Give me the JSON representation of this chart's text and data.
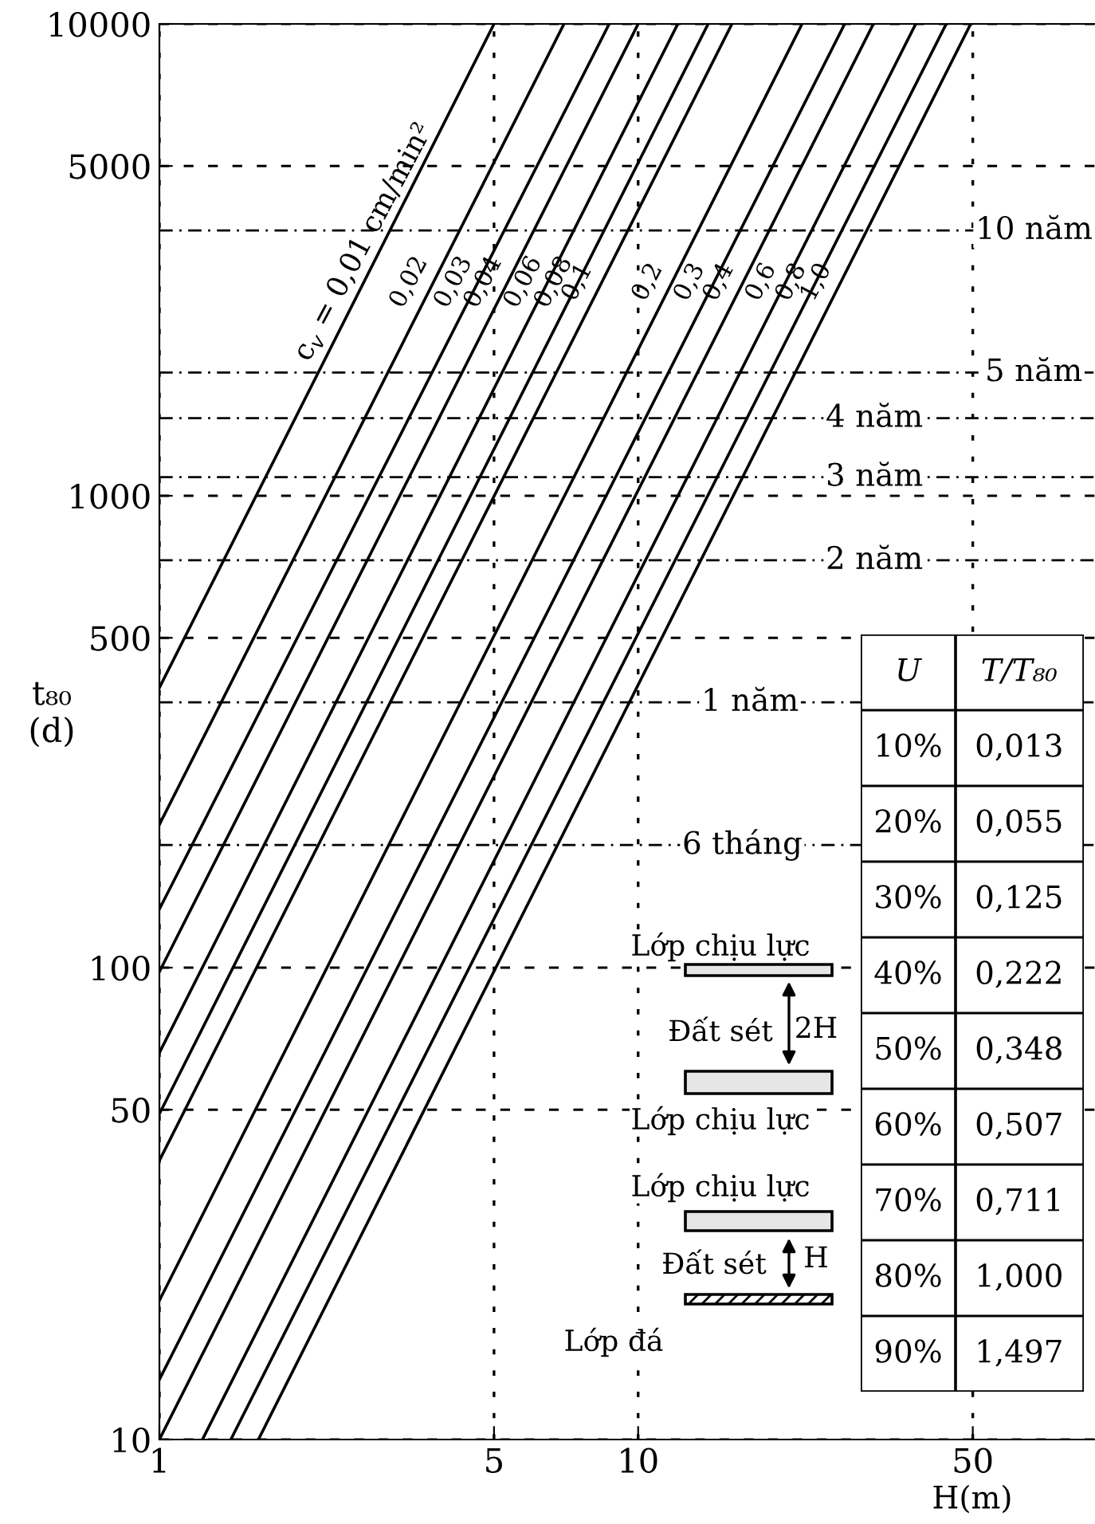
{
  "chart_data": [
    {
      "type": "line",
      "xlabel": "H(m)",
      "ylabel": "t₈₀\n(d)",
      "log": "xy",
      "grid": true,
      "line_style": "solid",
      "marker": "none",
      "xlim": [
        1,
        90
      ],
      "ylim": [
        10,
        10000
      ],
      "xticks": [
        1,
        5,
        10,
        50
      ],
      "yticks": [
        10,
        50,
        100,
        500,
        1000,
        5000,
        10000
      ],
      "series": [
        {
          "name": "c$_{v}$ = 0,01 cm/min²",
          "color": "#000000",
          "x": [
            1,
            5.0
          ],
          "values": [
            392,
            10000
          ]
        },
        {
          "name": "0,02",
          "color": "#000000",
          "x": [
            1,
            7.0
          ],
          "values": [
            201,
            10000
          ]
        },
        {
          "name": "0,03",
          "color": "#000000",
          "x": [
            1,
            8.7
          ],
          "values": [
            133,
            10000
          ]
        },
        {
          "name": "0,04",
          "color": "#000000",
          "x": [
            1,
            10
          ],
          "values": [
            98,
            10000
          ]
        },
        {
          "name": "0,06",
          "color": "#000000",
          "x": [
            1,
            12.1
          ],
          "values": [
            66,
            10000
          ]
        },
        {
          "name": "0,08",
          "color": "#000000",
          "x": [
            1,
            14
          ],
          "values": [
            49,
            10000
          ]
        },
        {
          "name": "0,1",
          "color": "#000000",
          "x": [
            1,
            15.7
          ],
          "values": [
            39,
            10000
          ]
        },
        {
          "name": "0,2",
          "color": "#000000",
          "x": [
            1,
            22
          ],
          "values": [
            19.7,
            10000
          ]
        },
        {
          "name": "0,3",
          "color": "#000000",
          "x": [
            1,
            27
          ],
          "values": [
            13.4,
            10000
          ]
        },
        {
          "name": "0,4",
          "color": "#000000",
          "x": [
            1,
            31
          ],
          "values": [
            10,
            10000
          ]
        },
        {
          "name": "0,6",
          "color": "#000000",
          "x": [
            1.23,
            38
          ],
          "values": [
            10,
            10000
          ]
        },
        {
          "name": "0,8",
          "color": "#000000",
          "x": [
            1.41,
            44
          ],
          "values": [
            10,
            10000
          ]
        },
        {
          "name": "1,0",
          "color": "#000000",
          "x": [
            1.61,
            49.5
          ],
          "values": [
            10,
            10000
          ]
        }
      ],
      "ref_lines": [
        {
          "axis": "y",
          "value": 3650,
          "label": "10 năm"
        },
        {
          "axis": "y",
          "value": 1825,
          "label": "5 năm"
        },
        {
          "axis": "y",
          "value": 1460,
          "label": "4 năm"
        },
        {
          "axis": "y",
          "value": 1095,
          "label": "3 năm"
        },
        {
          "axis": "y",
          "value": 730,
          "label": "2 năm"
        },
        {
          "axis": "y",
          "value": 365,
          "label": "1 năm"
        },
        {
          "axis": "y",
          "value": 182,
          "label": "6 tháng"
        }
      ],
      "annotations": [
        "Lớp chịu lực",
        "Đất sét",
        "2H",
        "Lớp chịu lực",
        "Lớp chịu lực",
        "Đất sét",
        "H",
        "Lớp đá",
        "U",
        "T/T₈₀",
        "10%",
        "0,013",
        "20%",
        "0,055",
        "30%",
        "0,125",
        "40%",
        "0,222",
        "50%",
        "0,348",
        "60%",
        "0,507",
        "70%",
        "0,711",
        "80%",
        "1,000",
        "90%",
        "1,497"
      ]
    }
  ]
}
